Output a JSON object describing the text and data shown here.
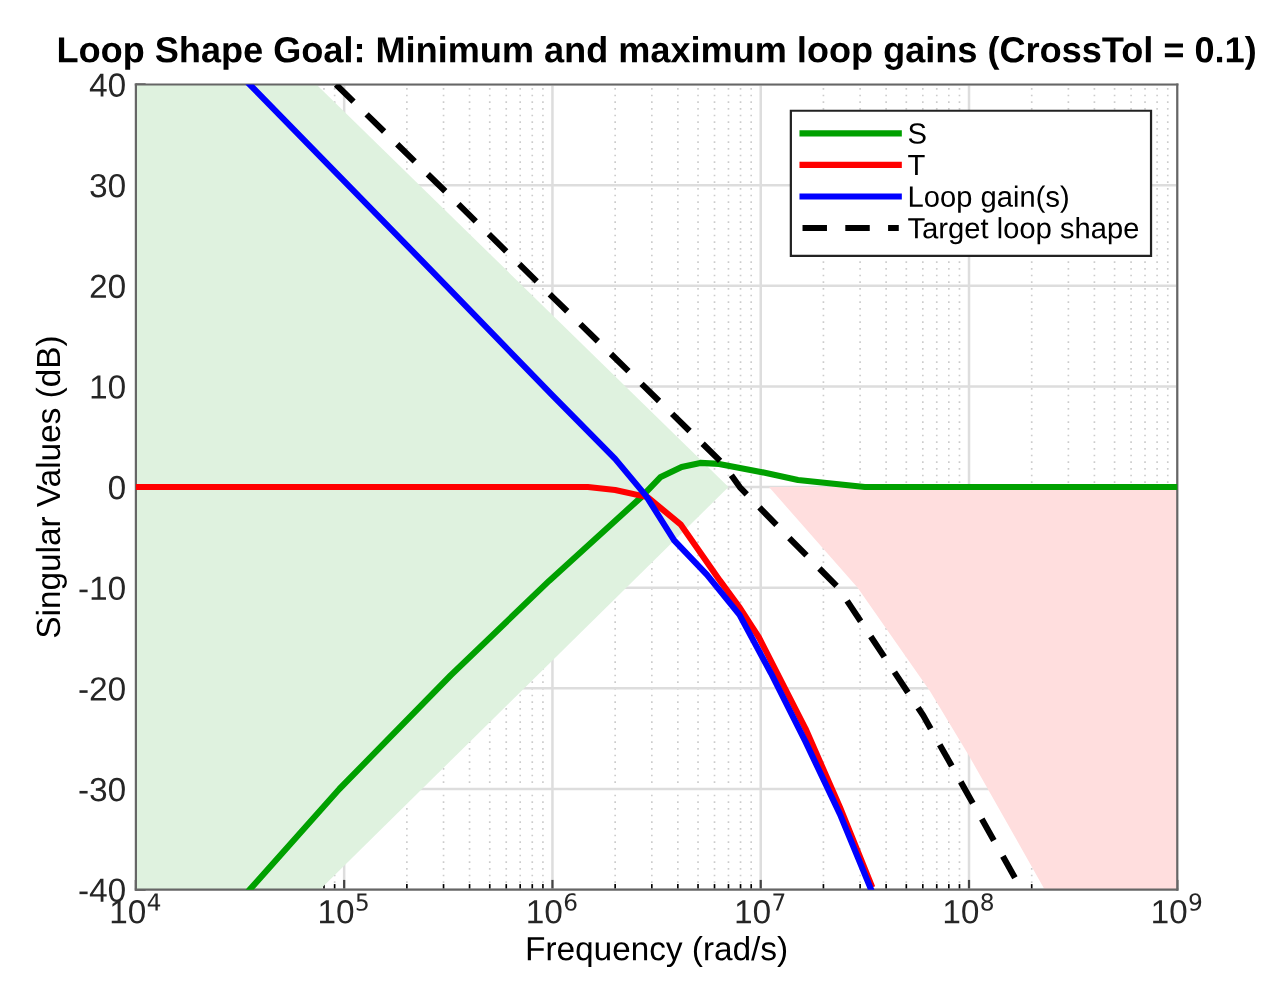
{
  "chart_data": {
    "type": "line",
    "title": "Loop Shape Goal: Minimum and maximum loop gains (CrossTol = 0.1)",
    "xlabel": "Frequency (rad/s)",
    "ylabel": "Singular Values (dB)",
    "log": "x",
    "grid": true,
    "legend": "top right",
    "xlim": [
      10000,
      1000000000
    ],
    "xticks": [
      {
        "value": 10000,
        "label": "10$^{4}$"
      },
      {
        "value": 100000,
        "label": "10$^{5}$"
      },
      {
        "value": 1000000,
        "label": "10$^{6}$"
      },
      {
        "value": 10000000,
        "label": "10$^{7}$"
      },
      {
        "value": 100000000,
        "label": "10$^{8}$"
      },
      {
        "value": 1000000000,
        "label": "10$^{9}$"
      }
    ],
    "ylim": [
      -40,
      40
    ],
    "yticks": [
      -40,
      -30,
      -20,
      -10,
      0,
      10,
      20,
      30,
      40
    ],
    "series": [
      {
        "type": "area",
        "color": "#dff2df",
        "x": [
          10000,
          73600,
          7000000
        ],
        "values": [
          40,
          40,
          0
        ]
      },
      {
        "type": "area",
        "color": "#dff2df",
        "x": [
          10000,
          76400,
          7000000
        ],
        "values": [
          -40,
          -40,
          0
        ]
      },
      {
        "type": "area",
        "color": "#ffdede",
        "x": [
          10960000,
          29200000,
          65000000,
          100000000,
          231000000,
          1000000000
        ],
        "values": [
          0,
          -10,
          -20.3,
          -26.7,
          -40,
          -40
        ]
      },
      {
        "name": "S",
        "color": "#00a000",
        "line_style": "solid",
        "x": [
          35200,
          94800,
          325000,
          966000,
          2670000,
          3310000,
          4170000,
          5130000,
          6310000,
          10000000,
          15100000,
          31600000,
          1000000000
        ],
        "values": [
          -40,
          -30,
          -18.7,
          -9.3,
          -1,
          1,
          2,
          2.4,
          2.3,
          1.5,
          0.7,
          0,
          0
        ]
      },
      {
        "name": "T",
        "color": "#ff0000",
        "line_style": "solid",
        "x": [
          10000,
          1480000,
          2000000,
          2860000,
          4120000,
          6370000,
          7940000,
          9840000,
          16400000,
          24000000,
          33900000
        ],
        "values": [
          0,
          0,
          -0.3,
          -1,
          -3.7,
          -9.3,
          -12,
          -15,
          -24,
          -31.8,
          -39.5
        ]
      },
      {
        "name": "Loop gain(s)",
        "color": "#0000ff",
        "line_style": "solid",
        "x": [
          35200,
          100000,
          316000,
          1000000,
          2000000,
          2820000,
          3840000,
          5510000,
          7910000,
          11200000,
          16400000,
          24000000,
          33900000
        ],
        "values": [
          40,
          30.4,
          19.8,
          9.1,
          2.8,
          -0.9,
          -5.3,
          -8.7,
          -12.7,
          -18.5,
          -25.3,
          -32.5,
          -40
        ]
      },
      {
        "name": "Target loop shape",
        "color": "#000000",
        "line_style": "dashed",
        "x": [
          91400,
          316000,
          1000000,
          3160000,
          6600000,
          7930000,
          12600000,
          23600000,
          60300000,
          179000000
        ],
        "values": [
          40,
          29.1,
          18.9,
          8.8,
          2.3,
          0,
          -4.3,
          -10,
          -22.7,
          -40
        ]
      }
    ]
  }
}
